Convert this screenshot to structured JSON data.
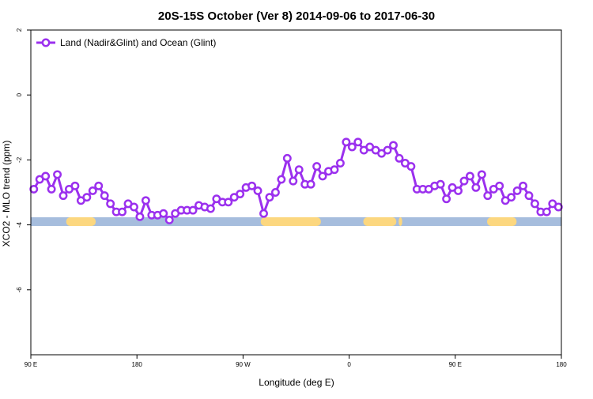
{
  "chart_data": {
    "type": "line",
    "title": "20S-15S October (Ver 8)   2014-09-06 to 2017-06-30",
    "xlabel": "Longitude (deg E)",
    "ylabel": "XCO2 - MLO trend (ppm)",
    "xlim": [
      90,
      540
    ],
    "ylim": [
      -8,
      2
    ],
    "x_ticks": [
      {
        "value": 90,
        "label": "90 E"
      },
      {
        "value": 180,
        "label": "180"
      },
      {
        "value": 270,
        "label": "90 W"
      },
      {
        "value": 360,
        "label": "0"
      },
      {
        "value": 450,
        "label": "90 E"
      },
      {
        "value": 540,
        "label": "180"
      }
    ],
    "y_ticks": [
      {
        "value": 2,
        "label": "2"
      },
      {
        "value": 0,
        "label": "0"
      },
      {
        "value": -2,
        "label": "-2"
      },
      {
        "value": -4,
        "label": "-4"
      },
      {
        "value": -6,
        "label": "-6"
      }
    ],
    "legend": {
      "position": "top-left"
    },
    "series": [
      {
        "name": "Land (Nadir&Glint) and Ocean (Glint)",
        "color": "#9b30ee",
        "x": [
          92.5,
          97.5,
          102.5,
          107.5,
          112.5,
          117.5,
          122.5,
          127.5,
          132.5,
          137.5,
          142.5,
          147.5,
          152.5,
          157.5,
          162.5,
          167.5,
          172.5,
          177.5,
          182.5,
          187.5,
          192.5,
          197.5,
          202.5,
          207.5,
          212.5,
          217.5,
          222.5,
          227.5,
          232.5,
          237.5,
          242.5,
          247.5,
          252.5,
          257.5,
          262.5,
          267.5,
          272.5,
          277.5,
          282.5,
          287.5,
          292.5,
          297.5,
          302.5,
          307.5,
          312.5,
          317.5,
          322.5,
          327.5,
          332.5,
          337.5,
          342.5,
          347.5,
          352.5,
          357.5,
          362.5,
          367.5,
          372.5,
          377.5,
          382.5,
          387.5,
          392.5,
          397.5,
          402.5,
          407.5,
          412.5,
          417.5,
          422.5,
          427.5,
          432.5,
          437.5,
          442.5,
          447.5,
          452.5,
          457.5,
          462.5,
          467.5,
          472.5,
          477.5,
          482.5,
          487.5,
          492.5,
          497.5,
          502.5,
          507.5,
          512.5,
          517.5,
          522.5,
          527.5,
          532.5,
          537.5
        ],
        "values": [
          -2.9,
          -2.6,
          -2.5,
          -2.9,
          -2.45,
          -3.1,
          -2.9,
          -2.8,
          -3.25,
          -3.15,
          -2.95,
          -2.8,
          -3.1,
          -3.35,
          -3.6,
          -3.6,
          -3.35,
          -3.45,
          -3.75,
          -3.25,
          -3.7,
          -3.7,
          -3.65,
          -3.85,
          -3.65,
          -3.55,
          -3.55,
          -3.55,
          -3.4,
          -3.45,
          -3.5,
          -3.2,
          -3.3,
          -3.3,
          -3.15,
          -3.05,
          -2.85,
          -2.8,
          -2.95,
          -3.65,
          -3.15,
          -3.0,
          -2.6,
          -1.95,
          -2.65,
          -2.3,
          -2.75,
          -2.75,
          -2.2,
          -2.5,
          -2.35,
          -2.3,
          -2.1,
          -1.45,
          -1.6,
          -1.45,
          -1.7,
          -1.6,
          -1.7,
          -1.8,
          -1.7,
          -1.55,
          -1.95,
          -2.1,
          -2.2,
          -2.9,
          -2.9,
          -2.9,
          -2.8,
          -2.75,
          -3.2,
          -2.85,
          -2.95,
          -2.65,
          -2.5,
          -2.85,
          -2.45,
          -3.1,
          -2.9,
          -2.8,
          -3.25,
          -3.15,
          -2.95,
          -2.8,
          -3.1,
          -3.35,
          -3.6,
          -3.6,
          -3.35,
          -3.45
        ]
      }
    ],
    "surface_bar": {
      "y": -3.9,
      "ocean_color": "#a6bddd",
      "land_color": "#fcd77f",
      "land_segments": [
        [
          120,
          145
        ],
        [
          285,
          336
        ],
        [
          372,
          400
        ],
        [
          402,
          405
        ],
        [
          477,
          502
        ]
      ]
    }
  }
}
